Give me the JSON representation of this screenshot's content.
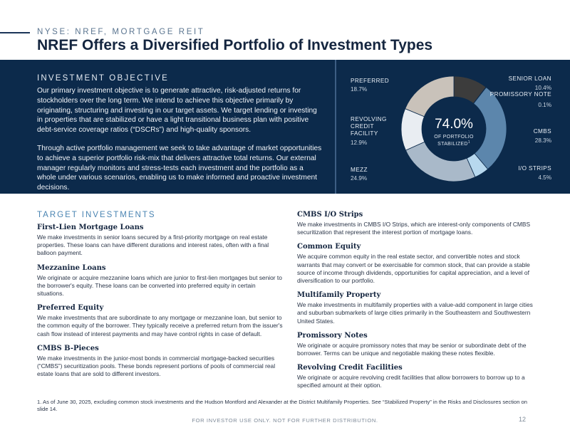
{
  "header": {
    "kicker": "NYSE: NREF, MORTGAGE REIT",
    "title": "NREF Offers a Diversified Portfolio of Investment Types"
  },
  "objective": {
    "heading": "INVESTMENT OBJECTIVE",
    "paragraph1": "Our primary investment objective is to generate attractive, risk-adjusted returns for stockholders over the long term. We intend to achieve this objective primarily by originating, structuring and investing in our target assets. We target lending or investing in properties that are stabilized or have a light transitional business plan with positive debt-service coverage ratios (“DSCRs”) and high-quality sponsors.",
    "paragraph2": "Through active portfolio management we seek to take advantage of market opportunities to achieve a superior portfolio risk-mix that delivers attractive total returns. Our external manager regularly monitors and stress-tests each investment and the portfolio as a whole under various scenarios, enabling us to make informed and proactive investment decisions."
  },
  "chart_data": {
    "type": "pie",
    "style": "donut",
    "center_value": "74.0%",
    "center_caption": "OF PORTFOLIO STABILIZED",
    "center_footnote_marker": "1",
    "slices": [
      {
        "label": "SENIOR LOAN",
        "display_value": "10.4%",
        "value": 10.4,
        "color": "#3c3c3c"
      },
      {
        "label": "PROMISSORY NOTE",
        "display_value": "0.1%",
        "value": 0.1,
        "color": "#1b4872"
      },
      {
        "label": "CMBS",
        "display_value": "28.3%",
        "value": 28.3,
        "color": "#5c86ac"
      },
      {
        "label": "I/O STRIPS",
        "display_value": "4.5%",
        "value": 4.5,
        "color": "#b7d8ee"
      },
      {
        "label": "MEZZ",
        "display_value": "24.9%",
        "value": 24.9,
        "color": "#a9b9c9"
      },
      {
        "label": "REVOLVING CREDIT FACILITY",
        "display_value": "12.9%",
        "value": 12.9,
        "color": "#e9edf2"
      },
      {
        "label": "PREFERRED",
        "display_value": "18.7%",
        "value": 18.7,
        "color": "#c9c2ba"
      }
    ],
    "labels": {
      "senior_loan": "SENIOR LOAN",
      "promissory_note": "PROMISSORY NOTE",
      "cmbs": "CMBS",
      "io_strips": "I/O STRIPS",
      "mezz": "MEZZ",
      "revolving_1": "REVOLVING",
      "revolving_2": "CREDIT",
      "revolving_3": "FACILITY",
      "preferred": "PREFERRED"
    }
  },
  "targets": {
    "heading": "TARGET INVESTMENTS",
    "left": [
      {
        "title": "First-Lien Mortgage Loans",
        "body": "We make investments in senior loans secured by a first-priority mortgage on real estate properties. These loans can have different durations and interest rates, often with a final balloon payment."
      },
      {
        "title": "Mezzanine Loans",
        "body": "We originate or acquire mezzanine loans which are junior to first-lien mortgages but senior to the borrower's equity. These loans can be converted into preferred equity in certain situations."
      },
      {
        "title": "Preferred Equity",
        "body": "We make investments that are subordinate to any mortgage or mezzanine loan, but senior to the common equity of the borrower. They typically receive a preferred return from the issuer's cash flow instead of interest payments and may have control rights in case of default."
      },
      {
        "title": "CMBS B-Pieces",
        "body": "We make investments in the junior-most bonds in commercial mortgage-backed securities (“CMBS”) securitization pools. These bonds represent portions of pools of commercial real estate loans that are sold to different investors."
      }
    ],
    "right": [
      {
        "title": "CMBS I/O Strips",
        "body": "We make investments in CMBS I/O Strips, which are interest-only components of CMBS securitization that represent the interest portion of mortgage loans."
      },
      {
        "title": "Common Equity",
        "body": "We acquire common equity in the real estate sector, and convertible notes and stock warrants that may convert or be exercisable for common stock, that can provide a stable source of income through dividends, opportunities for capital appreciation, and a level of diversification to our portfolio."
      },
      {
        "title": "Multifamily Property",
        "body": "We make investments in multifamily properties with a value-add component in large cities and suburban submarkets of large cities primarily in the Southeastern and Southwestern United States."
      },
      {
        "title": "Promissory Notes",
        "body": "We originate or acquire promissory notes that may be senior or subordinate debt of the borrower. Terms can be unique and negotiable making these notes flexible."
      },
      {
        "title": "Revolving Credit Facilities",
        "body": "We originate or acquire revolving credit facilities that allow borrowers to borrow up to a specified amount at their option."
      }
    ]
  },
  "footnote": "1. As of June 30, 2025, excluding common stock investments and the Hudson Montford and Alexander at the District Multifamily Properties. See “Stabilized Property” in the Risks and Disclosures section on slide 14.",
  "footer": {
    "notice": "FOR INVESTOR USE ONLY. NOT FOR FURTHER DISTRIBUTION.",
    "page": "12"
  }
}
